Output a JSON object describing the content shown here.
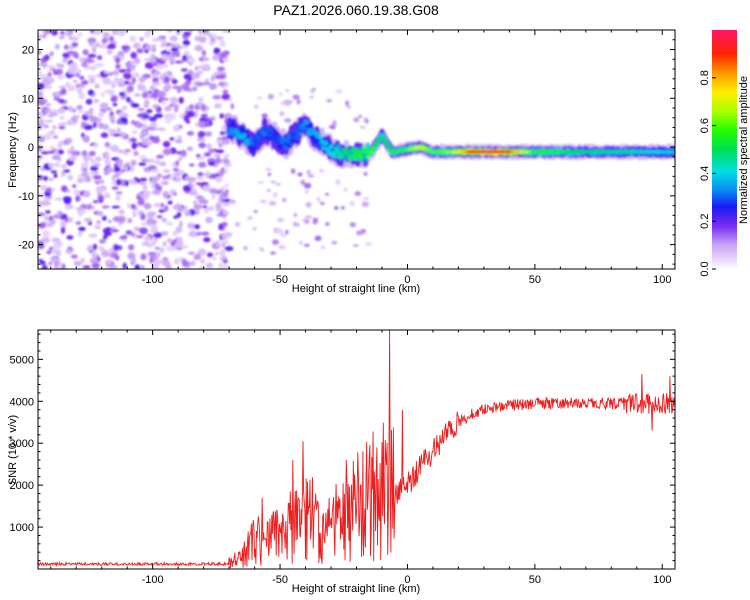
{
  "figure_title": "PAZ1.2026.060.19.38.G08",
  "chart_data": [
    {
      "type": "heatmap",
      "title": "PAZ1.2026.060.19.38.G08",
      "xlabel": "Height of straight line (km)",
      "ylabel": "Frequency (Hz)",
      "xlim": [
        -145,
        105
      ],
      "ylim": [
        -25,
        24
      ],
      "xticks": [
        -100,
        -50,
        0,
        50,
        100
      ],
      "yticks": [
        -20,
        -10,
        0,
        10,
        20
      ],
      "colorbar": {
        "label": "Normalized spectral amplitude",
        "range": [
          0.0,
          1.0
        ],
        "ticks": [
          0.0,
          0.2,
          0.4,
          0.6,
          0.8
        ]
      },
      "regions": [
        {
          "name": "noise",
          "x_range": [
            -145,
            -70
          ],
          "freq_range": [
            -25,
            24
          ],
          "amplitude": "0.05-0.2"
        },
        {
          "name": "transition",
          "x_range": [
            -70,
            -15
          ],
          "freq_center": 1.5,
          "amplitude": "0.2-0.45"
        },
        {
          "name": "signal_ridge",
          "x_range": [
            -15,
            105
          ],
          "freq_center": -1,
          "amplitude": "0.4-1.0",
          "peak_x_range": [
            25,
            40
          ]
        }
      ],
      "ridge": [
        {
          "x": -68,
          "f": 3.5,
          "a": 0.35
        },
        {
          "x": -64,
          "f": 2.0,
          "a": 0.4
        },
        {
          "x": -60,
          "f": 0.5,
          "a": 0.3
        },
        {
          "x": -56,
          "f": 3.5,
          "a": 0.32
        },
        {
          "x": -52,
          "f": 2.0,
          "a": 0.28
        },
        {
          "x": -48,
          "f": 0.5,
          "a": 0.32
        },
        {
          "x": -44,
          "f": 2.5,
          "a": 0.3
        },
        {
          "x": -40,
          "f": 4.5,
          "a": 0.35
        },
        {
          "x": -36,
          "f": 2.0,
          "a": 0.38
        },
        {
          "x": -32,
          "f": 0.0,
          "a": 0.4
        },
        {
          "x": -28,
          "f": -1.0,
          "a": 0.45
        },
        {
          "x": -24,
          "f": -1.5,
          "a": 0.5
        },
        {
          "x": -20,
          "f": -1.5,
          "a": 0.55
        },
        {
          "x": -14,
          "f": -1.0,
          "a": 0.6
        },
        {
          "x": -10,
          "f": 2.5,
          "a": 0.45
        },
        {
          "x": -6,
          "f": -1.0,
          "a": 0.55
        },
        {
          "x": 0,
          "f": -0.5,
          "a": 0.6
        },
        {
          "x": 5,
          "f": 0.0,
          "a": 0.75
        },
        {
          "x": 10,
          "f": -1.0,
          "a": 0.6
        },
        {
          "x": 18,
          "f": -1.0,
          "a": 0.65
        },
        {
          "x": 25,
          "f": -1.0,
          "a": 0.92
        },
        {
          "x": 32,
          "f": -1.0,
          "a": 0.98
        },
        {
          "x": 40,
          "f": -1.0,
          "a": 0.9
        },
        {
          "x": 50,
          "f": -1.0,
          "a": 0.58
        },
        {
          "x": 60,
          "f": -1.0,
          "a": 0.55
        },
        {
          "x": 70,
          "f": -1.0,
          "a": 0.5
        },
        {
          "x": 80,
          "f": -1.0,
          "a": 0.48
        },
        {
          "x": 90,
          "f": -1.0,
          "a": 0.45
        },
        {
          "x": 100,
          "f": -1.0,
          "a": 0.42
        },
        {
          "x": 104,
          "f": -1.0,
          "a": 0.4
        }
      ]
    },
    {
      "type": "line",
      "xlabel": "Height of straight line (km)",
      "ylabel": "SNR (10 * v/v)",
      "xlim": [
        -145,
        105
      ],
      "ylim": [
        0,
        5700
      ],
      "xticks": [
        -100,
        -50,
        0,
        50,
        100
      ],
      "yticks": [
        1000,
        2000,
        3000,
        4000,
        5000
      ],
      "series": [
        {
          "name": "SNR",
          "color": "#ee1c1c",
          "trend": [
            {
              "x": -145,
              "y": 120
            },
            {
              "x": -70,
              "y": 120
            },
            {
              "x": -65,
              "y": 250
            },
            {
              "x": -60,
              "y": 700
            },
            {
              "x": -55,
              "y": 650
            },
            {
              "x": -50,
              "y": 800
            },
            {
              "x": -45,
              "y": 900
            },
            {
              "x": -40,
              "y": 1200
            },
            {
              "x": -35,
              "y": 800
            },
            {
              "x": -30,
              "y": 900
            },
            {
              "x": -25,
              "y": 1100
            },
            {
              "x": -20,
              "y": 1300
            },
            {
              "x": -15,
              "y": 1500
            },
            {
              "x": -10,
              "y": 1600
            },
            {
              "x": -5,
              "y": 1700
            },
            {
              "x": 0,
              "y": 2000
            },
            {
              "x": 5,
              "y": 2400
            },
            {
              "x": 10,
              "y": 2800
            },
            {
              "x": 15,
              "y": 3200
            },
            {
              "x": 20,
              "y": 3500
            },
            {
              "x": 25,
              "y": 3700
            },
            {
              "x": 30,
              "y": 3800
            },
            {
              "x": 40,
              "y": 3900
            },
            {
              "x": 50,
              "y": 3950
            },
            {
              "x": 60,
              "y": 3950
            },
            {
              "x": 70,
              "y": 3950
            },
            {
              "x": 80,
              "y": 3950
            },
            {
              "x": 90,
              "y": 3950
            },
            {
              "x": 100,
              "y": 3950
            },
            {
              "x": 105,
              "y": 3950
            }
          ],
          "spikes": [
            {
              "x": -57,
              "y": 1700
            },
            {
              "x": -45,
              "y": 2600
            },
            {
              "x": -41,
              "y": 3050
            },
            {
              "x": -36,
              "y": 1800
            },
            {
              "x": -24,
              "y": 2600
            },
            {
              "x": -12,
              "y": 2900
            },
            {
              "x": -7,
              "y": 5700
            },
            {
              "x": -2,
              "y": 3800
            },
            {
              "x": 92,
              "y": 4650
            },
            {
              "x": 96,
              "y": 3300
            },
            {
              "x": 103,
              "y": 4600
            }
          ]
        }
      ]
    }
  ]
}
